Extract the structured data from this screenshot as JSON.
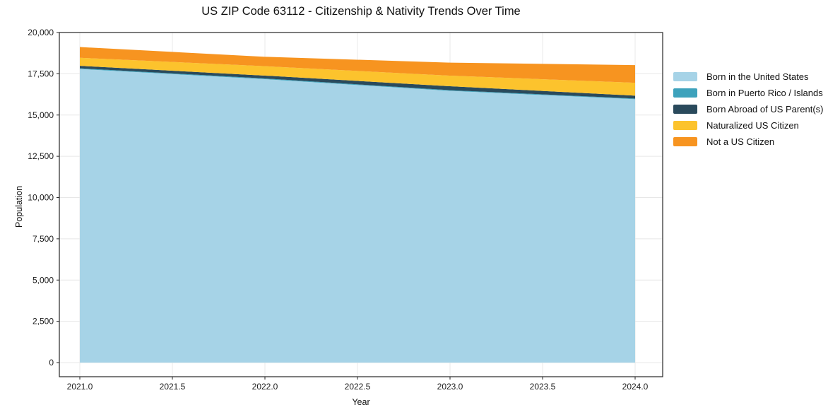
{
  "chart_data": {
    "type": "area",
    "stacked": true,
    "title": "US ZIP Code 63112 - Citizenship & Nativity Trends Over Time",
    "xlabel": "Year",
    "ylabel": "Population",
    "x": [
      2021,
      2022,
      2023,
      2024
    ],
    "series": [
      {
        "name": "Born in the United States",
        "color": "#a6d3e7",
        "values": [
          17790,
          17175,
          16465,
          15960
        ]
      },
      {
        "name": "Born in Puerto Rico / Islands",
        "color": "#3da2bc",
        "values": [
          40,
          40,
          40,
          40
        ]
      },
      {
        "name": "Born Abroad of US Parent(s)",
        "color": "#2a4a5c",
        "values": [
          150,
          175,
          240,
          175
        ]
      },
      {
        "name": "Naturalized US Citizen",
        "color": "#fcc32d",
        "values": [
          490,
          570,
          640,
          780
        ]
      },
      {
        "name": "Not a US Citizen",
        "color": "#f79420",
        "values": [
          650,
          570,
          790,
          1070
        ]
      }
    ],
    "stack_totals": [
      19120,
      18530,
      18175,
      18025
    ],
    "xlim": [
      2020.89,
      2024.15
    ],
    "ylim": [
      0,
      20000
    ],
    "xticks": {
      "values": [
        2021,
        2021.5,
        2022,
        2022.5,
        2023,
        2023.5,
        2024
      ],
      "labels": [
        "2021.0",
        "2021.5",
        "2022.0",
        "2022.5",
        "2023.0",
        "2023.5",
        "2024.0"
      ]
    },
    "yticks": {
      "values": [
        0,
        2500,
        5000,
        7500,
        10000,
        12500,
        15000,
        17500,
        20000
      ],
      "labels": [
        "0",
        "2,500",
        "5,000",
        "7,500",
        "10,000",
        "12,500",
        "15,000",
        "17,500",
        "20,000"
      ]
    },
    "grid": true,
    "legend_position": "right"
  },
  "theme": {
    "background": "#ffffff",
    "grid": "#e7e7e7",
    "spine": "#262626",
    "text": "#1c1c1c"
  }
}
